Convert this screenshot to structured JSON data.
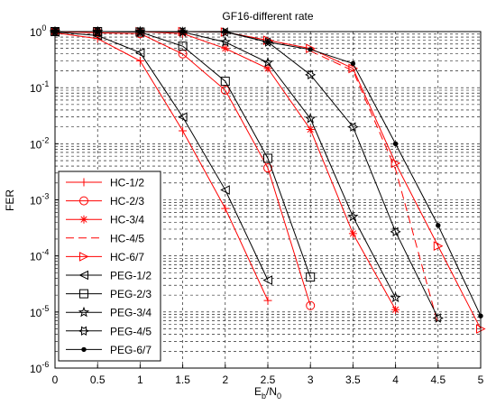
{
  "chart_data": {
    "type": "line",
    "title": "GF16-different rate",
    "xlabel": "E_b/N_0",
    "xlabel_parts": {
      "main": "E",
      "sub1": "b",
      "slash": "/N",
      "sub2": "0"
    },
    "ylabel": "FER",
    "xlim": [
      0,
      5
    ],
    "ylim": [
      1e-06,
      1
    ],
    "yscale": "log",
    "grid": true,
    "grid_style": "dashed",
    "legend_position": "bottom-left",
    "x_ticks": [
      "0",
      "0.5",
      "1",
      "1.5",
      "2",
      "2.5",
      "3",
      "3.5",
      "4",
      "4.5",
      "5"
    ],
    "x_tick_values": [
      0,
      0.5,
      1,
      1.5,
      2,
      2.5,
      3,
      3.5,
      4,
      4.5,
      5
    ],
    "y_ticks": [
      {
        "base": "10",
        "exp": "0",
        "value": 1
      },
      {
        "base": "10",
        "exp": "-1",
        "value": 0.1
      },
      {
        "base": "10",
        "exp": "-2",
        "value": 0.01
      },
      {
        "base": "10",
        "exp": "-3",
        "value": 0.001
      },
      {
        "base": "10",
        "exp": "-4",
        "value": 0.0001
      },
      {
        "base": "10",
        "exp": "-5",
        "value": 1e-05
      },
      {
        "base": "10",
        "exp": "-6",
        "value": 1e-06
      }
    ],
    "series": [
      {
        "name": "HC-1/2",
        "color": "#ff0000",
        "marker": "plus",
        "dash": "solid",
        "x": [
          0,
          0.5,
          1,
          1.5,
          2,
          2.5
        ],
        "y": [
          0.95,
          0.75,
          0.3,
          0.017,
          0.0007,
          1.6e-05
        ]
      },
      {
        "name": "HC-2/3",
        "color": "#ff0000",
        "marker": "circle",
        "dash": "solid",
        "x": [
          0,
          0.5,
          1,
          1.5,
          2,
          2.5,
          3
        ],
        "y": [
          1.0,
          0.95,
          0.92,
          0.4,
          0.09,
          0.0037,
          1.3e-05
        ]
      },
      {
        "name": "HC-3/4",
        "color": "#ff0000",
        "marker": "asterisk",
        "dash": "solid",
        "x": [
          0,
          0.5,
          1,
          1.5,
          2,
          2.5,
          3,
          3.5,
          4
        ],
        "y": [
          1.0,
          1.0,
          1.0,
          0.92,
          0.5,
          0.22,
          0.018,
          0.00025,
          1.1e-05
        ]
      },
      {
        "name": "HC-4/5",
        "color": "#ff0000",
        "marker": "none",
        "dash": "dashed",
        "x": [
          3,
          3.5,
          4,
          4.5
        ],
        "y": [
          0.45,
          0.2,
          0.0035,
          6e-06
        ]
      },
      {
        "name": "HC-6/7",
        "color": "#ff0000",
        "marker": "triangle-right",
        "dash": "solid",
        "x": [
          0,
          0.5,
          1,
          1.5,
          2,
          2.5,
          3,
          3.5,
          4,
          4.5,
          5
        ],
        "y": [
          1.0,
          1.0,
          1.0,
          1.0,
          0.98,
          0.7,
          0.5,
          0.22,
          0.0045,
          0.00015,
          5e-06
        ]
      },
      {
        "name": "PEG-1/2",
        "color": "#000000",
        "marker": "triangle-left",
        "dash": "solid",
        "x": [
          0,
          0.5,
          1,
          1.5,
          2,
          2.5
        ],
        "y": [
          0.98,
          0.85,
          0.42,
          0.03,
          0.0015,
          3.7e-05
        ]
      },
      {
        "name": "PEG-2/3",
        "color": "#000000",
        "marker": "square",
        "dash": "solid",
        "x": [
          0,
          0.5,
          1,
          1.5,
          2,
          2.5,
          3
        ],
        "y": [
          1.0,
          1.0,
          0.98,
          0.55,
          0.13,
          0.0055,
          4.2e-05
        ]
      },
      {
        "name": "PEG-3/4",
        "color": "#000000",
        "marker": "pentagram",
        "dash": "solid",
        "x": [
          0,
          0.5,
          1,
          1.5,
          2,
          2.5,
          3,
          3.5,
          4
        ],
        "y": [
          1.0,
          1.0,
          1.0,
          0.98,
          0.65,
          0.28,
          0.028,
          0.0005,
          1.8e-05
        ]
      },
      {
        "name": "PEG-4/5",
        "color": "#000000",
        "marker": "hexagram",
        "dash": "solid",
        "x": [
          0,
          0.5,
          1,
          1.5,
          2,
          2.5,
          3,
          3.5,
          4,
          4.5
        ],
        "y": [
          1.0,
          1.0,
          1.0,
          1.0,
          0.98,
          0.65,
          0.17,
          0.02,
          0.00027,
          7.8e-06
        ]
      },
      {
        "name": "PEG-6/7",
        "color": "#000000",
        "marker": "dot",
        "dash": "solid",
        "x": [
          0,
          0.5,
          1,
          1.5,
          2,
          2.5,
          3,
          3.5,
          4,
          4.5,
          5
        ],
        "y": [
          1.0,
          1.0,
          1.0,
          1.0,
          1.0,
          0.65,
          0.48,
          0.27,
          0.01,
          0.00035,
          8.5e-06
        ]
      }
    ]
  }
}
